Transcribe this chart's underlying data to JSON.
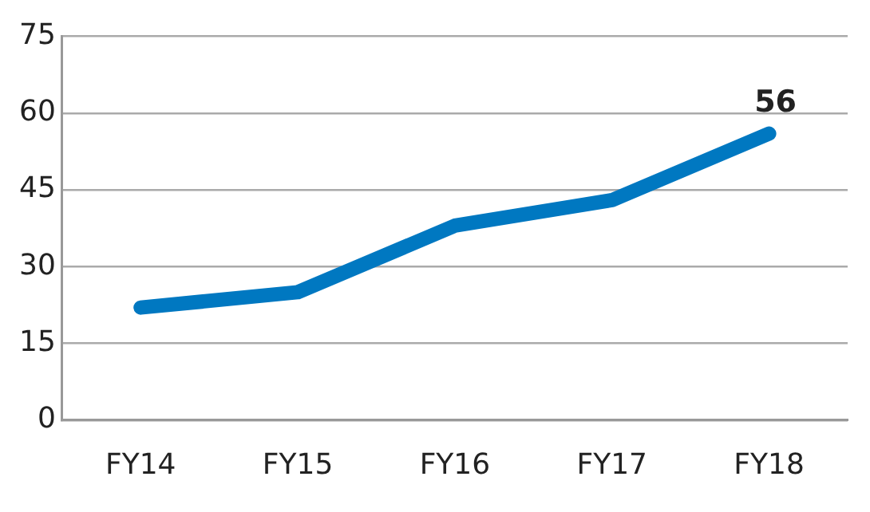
{
  "chart_data": {
    "type": "line",
    "categories": [
      "FY14",
      "FY15",
      "FY16",
      "FY17",
      "FY18"
    ],
    "series": [
      {
        "color": "#0078c1",
        "values": [
          22,
          25,
          38,
          43,
          56
        ],
        "value_labels": [
          null,
          null,
          null,
          null,
          "56"
        ]
      }
    ],
    "ylim": [
      0,
      75
    ],
    "yticks": [
      0,
      15,
      30,
      45,
      60,
      75
    ],
    "grid": "y",
    "legend": false,
    "marker": "none",
    "line_style": "solid"
  }
}
